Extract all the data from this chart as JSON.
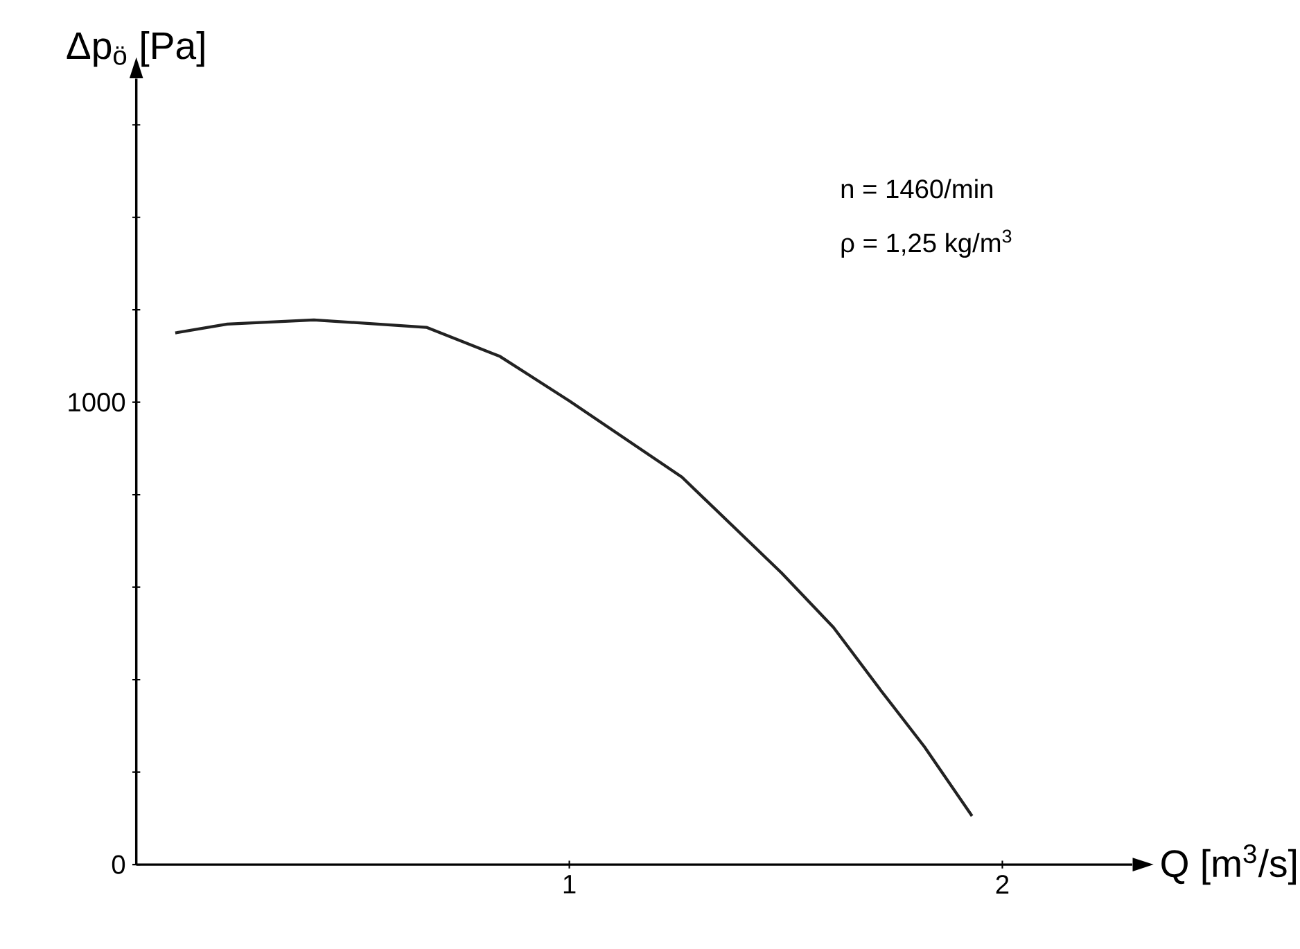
{
  "chart_data": {
    "type": "line",
    "xlabel": "Q [m$^{3}$/s]",
    "ylabel": "Δp$_{ö}$ [Pa]",
    "annotations": [
      "n = 1460/min",
      "ρ = 1,25 kg/m$^{3}$"
    ],
    "x": [
      0.09,
      0.21,
      0.41,
      0.67,
      0.84,
      1.0,
      1.26,
      1.49,
      1.61,
      1.72,
      1.82,
      1.93
    ],
    "series": [
      {
        "color": "#222222",
        "values": [
          1150,
          1169,
          1178,
          1162,
          1099,
          1003,
          838,
          631,
          513,
          376,
          255,
          105
        ]
      }
    ],
    "xlim": [
      0,
      2.3
    ],
    "ylim": [
      0,
      1700
    ],
    "xticks": [
      1,
      2
    ],
    "yticks": [
      0,
      {
        "value": 200,
        "label": null
      },
      {
        "value": 400,
        "label": null
      },
      {
        "value": 600,
        "label": null
      },
      {
        "value": 800,
        "label": null
      },
      1000,
      {
        "value": 1200,
        "label": null
      },
      {
        "value": 1400,
        "label": null
      },
      {
        "value": 1600,
        "label": null
      }
    ],
    "grid": false,
    "legend": false,
    "marker": "none",
    "line_style": "solid"
  }
}
